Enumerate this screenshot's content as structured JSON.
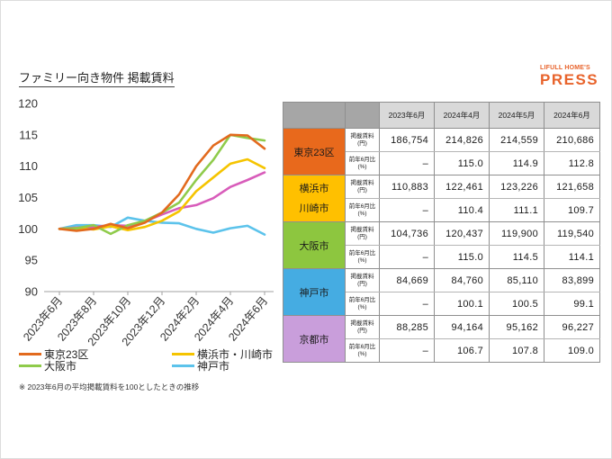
{
  "title": "ファミリー向き物件 掲載賃料",
  "logo": {
    "small": "LIFULL HOME'S",
    "big": "PRESS",
    "color": "#E8632B"
  },
  "note": "※ 2023年6月の平均掲載賃料を100としたときの推移",
  "table": {
    "headers": [
      "2023年6月",
      "2024年4月",
      "2024年5月",
      "2024年6月"
    ],
    "labels": {
      "rent_line1": "掲載賃料",
      "rent_line2": "(円)",
      "yoy_line1": "前年6月比",
      "yoy_line2": "(%)"
    },
    "cities": [
      {
        "name": "東京23区",
        "color": "#E8691C",
        "rent": [
          "186,754",
          "214,826",
          "214,559",
          "210,686"
        ],
        "yoy": [
          "–",
          "115.0",
          "114.9",
          "112.8"
        ]
      },
      {
        "name": "横浜市",
        "name2": "川崎市",
        "color": "#FFC000",
        "rent": [
          "110,883",
          "122,461",
          "123,226",
          "121,658"
        ],
        "yoy": [
          "–",
          "110.4",
          "111.1",
          "109.7"
        ]
      },
      {
        "name": "大阪市",
        "color": "#8DC63F",
        "rent": [
          "104,736",
          "120,437",
          "119,900",
          "119,540"
        ],
        "yoy": [
          "–",
          "115.0",
          "114.5",
          "114.1"
        ]
      },
      {
        "name": "神戸市",
        "color": "#45ACE2",
        "rent": [
          "84,669",
          "84,760",
          "85,110",
          "83,899"
        ],
        "yoy": [
          "–",
          "100.1",
          "100.5",
          "99.1"
        ]
      },
      {
        "name": "京都市",
        "color": "#C99EDB",
        "rent": [
          "88,285",
          "94,164",
          "95,162",
          "96,227"
        ],
        "yoy": [
          "–",
          "106.7",
          "107.8",
          "109.0"
        ]
      }
    ]
  },
  "chart_data": {
    "type": "line",
    "x": [
      0,
      1,
      2,
      3,
      4,
      5,
      6,
      7,
      8,
      9,
      10,
      11,
      12
    ],
    "xticks": {
      "positions": [
        0,
        2,
        4,
        6,
        8,
        10,
        12
      ],
      "labels": [
        "2023年6月",
        "2023年8月",
        "2023年10月",
        "2023年12月",
        "2024年2月",
        "2024年4月",
        "2024年6月"
      ]
    },
    "ylim": [
      90,
      120
    ],
    "yticks": [
      90,
      95,
      100,
      105,
      110,
      115,
      120
    ],
    "grid": false,
    "series": [
      {
        "name": "東京23区",
        "color": "#E26A1E",
        "values": [
          100,
          99.7,
          100.0,
          100.8,
          100.1,
          101.0,
          102.6,
          105.5,
          110.0,
          113.3,
          115.0,
          114.9,
          112.8
        ]
      },
      {
        "name": "横浜市・川崎市",
        "color": "#F5C400",
        "values": [
          100,
          100.1,
          99.9,
          100.4,
          99.8,
          100.3,
          101.3,
          102.8,
          106.0,
          108.2,
          110.4,
          111.1,
          109.7
        ]
      },
      {
        "name": "大阪市",
        "color": "#8FCB4B",
        "values": [
          100,
          100.1,
          100.6,
          99.2,
          100.6,
          101.3,
          102.6,
          104.2,
          107.8,
          111.0,
          115.0,
          114.5,
          114.1
        ]
      },
      {
        "name": "神戸市",
        "color": "#5CC3EB",
        "values": [
          100,
          100.6,
          100.6,
          100.3,
          101.8,
          101.3,
          101.0,
          100.9,
          100.0,
          99.4,
          100.1,
          100.5,
          99.1
        ]
      },
      {
        "color": "#D85CBA",
        "values": [
          100,
          100.2,
          100.3,
          100.6,
          100.5,
          101.2,
          102.3,
          103.3,
          103.8,
          104.9,
          106.7,
          107.8,
          109.0
        ]
      }
    ]
  }
}
